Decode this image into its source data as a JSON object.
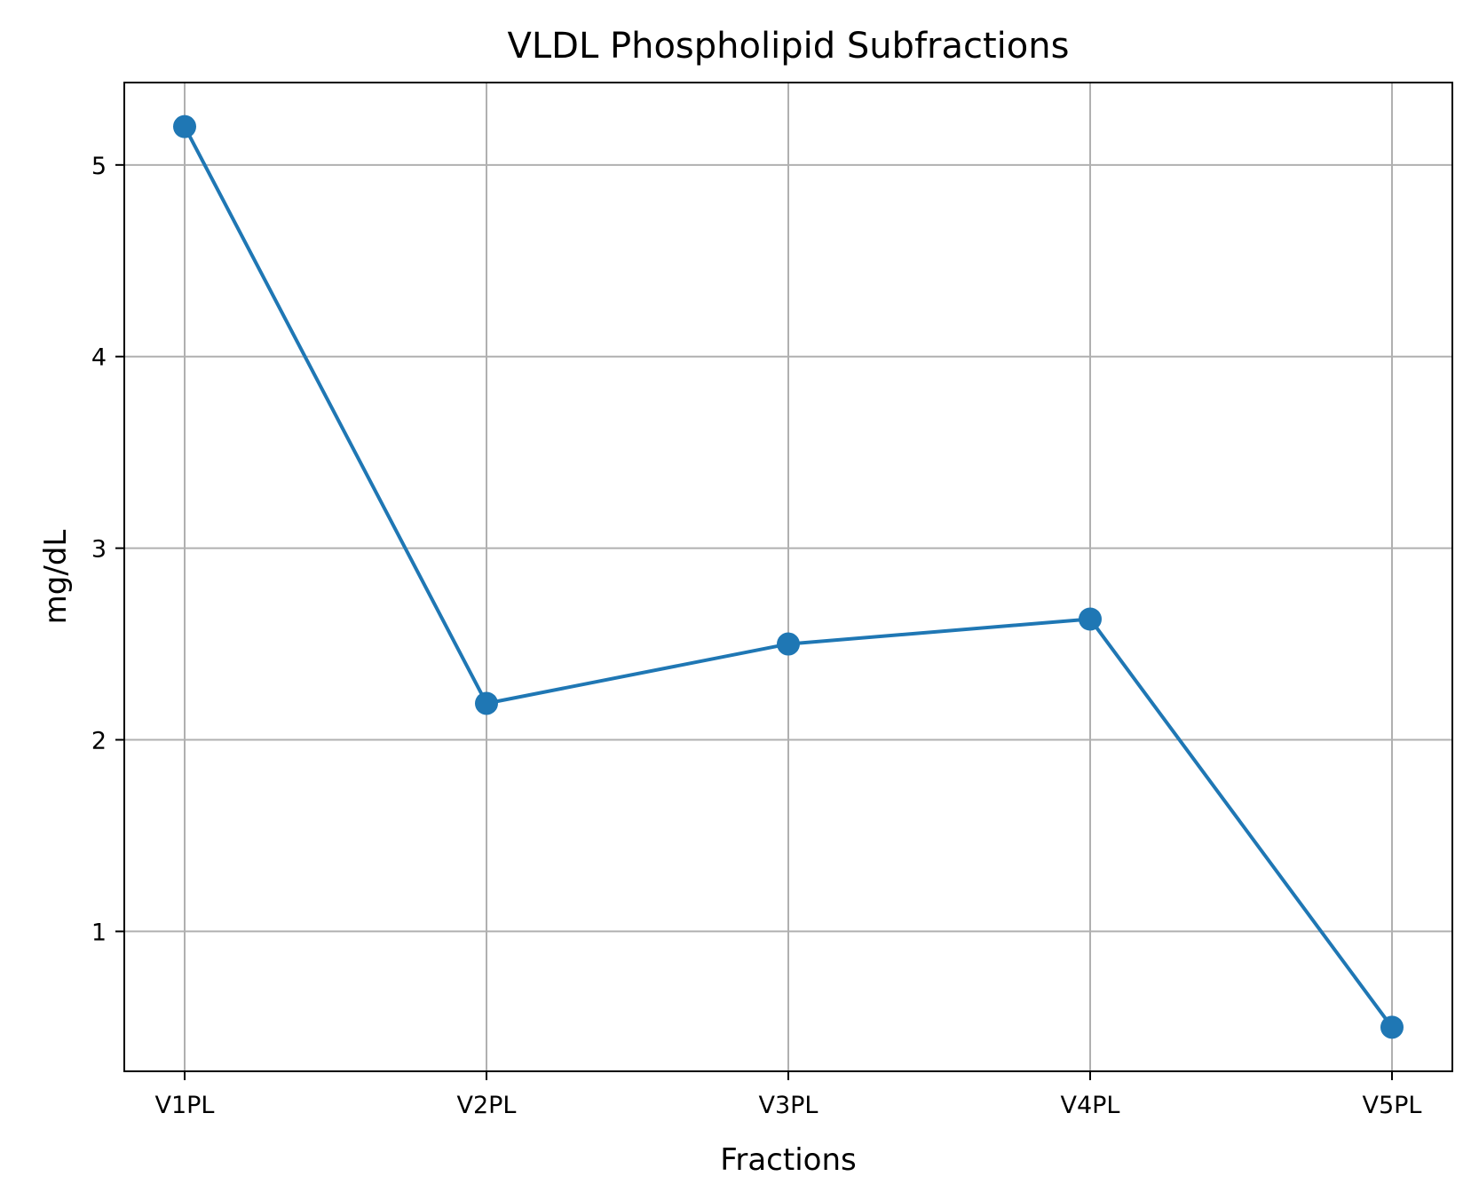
{
  "chart_data": {
    "type": "line",
    "title": "VLDL Phospholipid Subfractions",
    "xlabel": "Fractions",
    "ylabel": "mg/dL",
    "categories": [
      "V1PL",
      "V2PL",
      "V3PL",
      "V4PL",
      "V5PL"
    ],
    "series": [
      {
        "values": [
          5.2,
          2.19,
          2.5,
          2.63,
          0.5
        ],
        "color": "#1f77b4",
        "marker": "circle"
      }
    ],
    "ylim": [
      0.27,
      5.43
    ],
    "yticks": [
      1,
      2,
      3,
      4,
      5
    ],
    "grid": true,
    "legend": "none"
  }
}
